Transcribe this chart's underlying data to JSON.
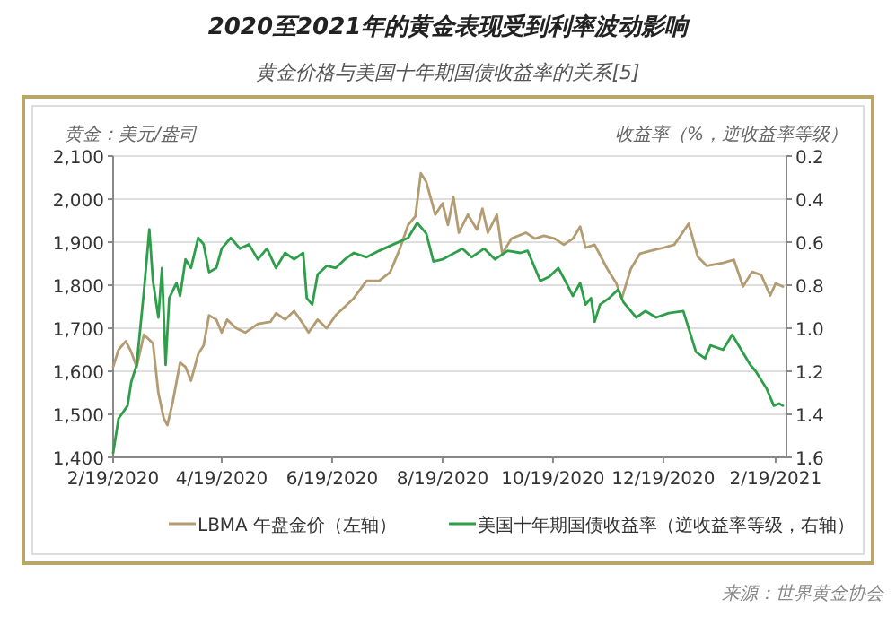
{
  "chart_data": {
    "type": "line",
    "title": "2020至2021年的黄金表现受到利率波动影响",
    "subtitle": "黄金价格与美国十年期国债收益率的关系[5]",
    "ylabel": "黄金：美元/盎司",
    "y2label": "收益率（%，逆收益率等级）",
    "annotations": [
      "来源：世界黄金协会"
    ],
    "xlim": [
      "2020-02-19",
      "2021-02-25"
    ],
    "xticks": [
      {
        "value": "2020-02-19",
        "label": "2/19/2020"
      },
      {
        "value": "2020-04-19",
        "label": "4/19/2020"
      },
      {
        "value": "2020-06-19",
        "label": "6/19/2020"
      },
      {
        "value": "2020-08-19",
        "label": "8/19/2020"
      },
      {
        "value": "2020-10-19",
        "label": "10/19/2020"
      },
      {
        "value": "2020-12-19",
        "label": "12/19/2020"
      },
      {
        "value": "2021-02-19",
        "label": "2/19/2021"
      }
    ],
    "ylim": [
      1400,
      2100
    ],
    "yticks": [
      {
        "value": 1400,
        "label": "1,400"
      },
      {
        "value": 1500,
        "label": "1,500"
      },
      {
        "value": 1600,
        "label": "1,600"
      },
      {
        "value": 1700,
        "label": "1,700"
      },
      {
        "value": 1800,
        "label": "1,800"
      },
      {
        "value": 1900,
        "label": "1,900"
      },
      {
        "value": 2000,
        "label": "2,000"
      },
      {
        "value": 2100,
        "label": "2,100"
      }
    ],
    "y2lim": [
      1.6,
      0.2
    ],
    "y2ticks": [
      {
        "value": 0.2,
        "label": "0.2"
      },
      {
        "value": 0.4,
        "label": "0.4"
      },
      {
        "value": 0.6,
        "label": "0.6"
      },
      {
        "value": 0.8,
        "label": "0.8"
      },
      {
        "value": 1.0,
        "label": "1.0"
      },
      {
        "value": 1.2,
        "label": "1.2"
      },
      {
        "value": 1.4,
        "label": "1.4"
      },
      {
        "value": 1.6,
        "label": "1.6"
      }
    ],
    "grid": "y",
    "legend": "bottom",
    "series": [
      {
        "name": "LBMA 午盘金价（左轴）",
        "color": "#b39b72",
        "x": [
          "2020-02-19",
          "2020-02-22",
          "2020-02-26",
          "2020-02-29",
          "2020-03-03",
          "2020-03-07",
          "2020-03-12",
          "2020-03-15",
          "2020-03-18",
          "2020-03-20",
          "2020-03-23",
          "2020-03-27",
          "2020-03-30",
          "2020-04-02",
          "2020-04-06",
          "2020-04-09",
          "2020-04-12",
          "2020-04-16",
          "2020-04-19",
          "2020-04-22",
          "2020-04-27",
          "2020-05-02",
          "2020-05-09",
          "2020-05-16",
          "2020-05-19",
          "2020-05-24",
          "2020-05-29",
          "2020-06-03",
          "2020-06-06",
          "2020-06-11",
          "2020-06-16",
          "2020-06-21",
          "2020-06-26",
          "2020-07-01",
          "2020-07-08",
          "2020-07-15",
          "2020-07-21",
          "2020-07-26",
          "2020-07-31",
          "2020-08-04",
          "2020-08-07",
          "2020-08-10",
          "2020-08-15",
          "2020-08-19",
          "2020-08-22",
          "2020-08-25",
          "2020-08-28",
          "2020-09-02",
          "2020-09-07",
          "2020-09-10",
          "2020-09-13",
          "2020-09-18",
          "2020-09-21",
          "2020-09-26",
          "2020-10-04",
          "2020-10-09",
          "2020-10-14",
          "2020-10-20",
          "2020-10-25",
          "2020-10-30",
          "2020-11-03",
          "2020-11-06",
          "2020-11-11",
          "2020-11-18",
          "2020-11-23",
          "2020-11-26",
          "2020-12-01",
          "2020-12-06",
          "2020-12-12",
          "2020-12-19",
          "2020-12-25",
          "2021-01-02",
          "2021-01-07",
          "2021-01-12",
          "2021-01-21",
          "2021-01-27",
          "2021-02-01",
          "2021-02-06",
          "2021-02-11",
          "2021-02-16",
          "2021-02-19",
          "2021-02-23"
        ],
        "values": [
          1610,
          1650,
          1670,
          1645,
          1610,
          1685,
          1665,
          1550,
          1490,
          1475,
          1530,
          1620,
          1610,
          1578,
          1640,
          1660,
          1730,
          1720,
          1690,
          1720,
          1700,
          1690,
          1710,
          1715,
          1735,
          1720,
          1740,
          1710,
          1690,
          1720,
          1700,
          1730,
          1750,
          1770,
          1810,
          1810,
          1830,
          1880,
          1940,
          1960,
          2060,
          2040,
          1964,
          1990,
          1940,
          2005,
          1922,
          1964,
          1929,
          1978,
          1922,
          1964,
          1873,
          1908,
          1922,
          1908,
          1915,
          1908,
          1894,
          1908,
          1936,
          1887,
          1894,
          1838,
          1804,
          1769,
          1838,
          1873,
          1880,
          1887,
          1894,
          1943,
          1866,
          1845,
          1852,
          1859,
          1797,
          1831,
          1824,
          1776,
          1804,
          1797
        ]
      },
      {
        "name": "美国十年期国债收益率（逆收益率等级，右轴）",
        "color": "#2e9e4a",
        "axis": "y2",
        "x": [
          "2020-02-19",
          "2020-02-22",
          "2020-02-27",
          "2020-02-29",
          "2020-03-03",
          "2020-03-05",
          "2020-03-07",
          "2020-03-10",
          "2020-03-12",
          "2020-03-15",
          "2020-03-17",
          "2020-03-19",
          "2020-03-21",
          "2020-03-25",
          "2020-03-27",
          "2020-03-30",
          "2020-04-02",
          "2020-04-06",
          "2020-04-09",
          "2020-04-12",
          "2020-04-16",
          "2020-04-19",
          "2020-04-24",
          "2020-04-29",
          "2020-05-04",
          "2020-05-09",
          "2020-05-14",
          "2020-05-19",
          "2020-05-24",
          "2020-05-29",
          "2020-06-03",
          "2020-06-05",
          "2020-06-08",
          "2020-06-11",
          "2020-06-16",
          "2020-06-21",
          "2020-06-26",
          "2020-07-01",
          "2020-07-08",
          "2020-07-15",
          "2020-07-23",
          "2020-07-31",
          "2020-08-05",
          "2020-08-10",
          "2020-08-14",
          "2020-08-19",
          "2020-08-30",
          "2020-09-04",
          "2020-09-11",
          "2020-09-17",
          "2020-09-24",
          "2020-10-01",
          "2020-10-05",
          "2020-10-09",
          "2020-10-12",
          "2020-10-17",
          "2020-10-22",
          "2020-10-27",
          "2020-10-30",
          "2020-11-03",
          "2020-11-06",
          "2020-11-09",
          "2020-11-11",
          "2020-11-14",
          "2020-11-19",
          "2020-11-24",
          "2020-11-27",
          "2020-12-04",
          "2020-12-09",
          "2020-12-15",
          "2020-12-22",
          "2020-12-30",
          "2021-01-06",
          "2021-01-11",
          "2021-01-14",
          "2021-01-21",
          "2021-01-26",
          "2021-01-31",
          "2021-02-05",
          "2021-02-08",
          "2021-02-14",
          "2021-02-18",
          "2021-02-21",
          "2021-02-23"
        ],
        "values": [
          1.58,
          1.42,
          1.36,
          1.25,
          1.17,
          1.0,
          0.83,
          0.54,
          0.78,
          0.95,
          0.72,
          1.17,
          0.86,
          0.79,
          0.85,
          0.68,
          0.72,
          0.58,
          0.61,
          0.74,
          0.72,
          0.63,
          0.58,
          0.63,
          0.61,
          0.68,
          0.63,
          0.72,
          0.65,
          0.68,
          0.65,
          0.86,
          0.89,
          0.75,
          0.71,
          0.72,
          0.68,
          0.65,
          0.67,
          0.64,
          0.61,
          0.58,
          0.51,
          0.56,
          0.69,
          0.68,
          0.63,
          0.67,
          0.63,
          0.68,
          0.64,
          0.65,
          0.64,
          0.72,
          0.78,
          0.76,
          0.72,
          0.8,
          0.85,
          0.79,
          0.89,
          0.86,
          0.97,
          0.89,
          0.86,
          0.82,
          0.88,
          0.95,
          0.92,
          0.95,
          0.93,
          0.92,
          1.11,
          1.14,
          1.08,
          1.1,
          1.03,
          1.1,
          1.17,
          1.2,
          1.28,
          1.36,
          1.35,
          1.36
        ]
      }
    ]
  }
}
